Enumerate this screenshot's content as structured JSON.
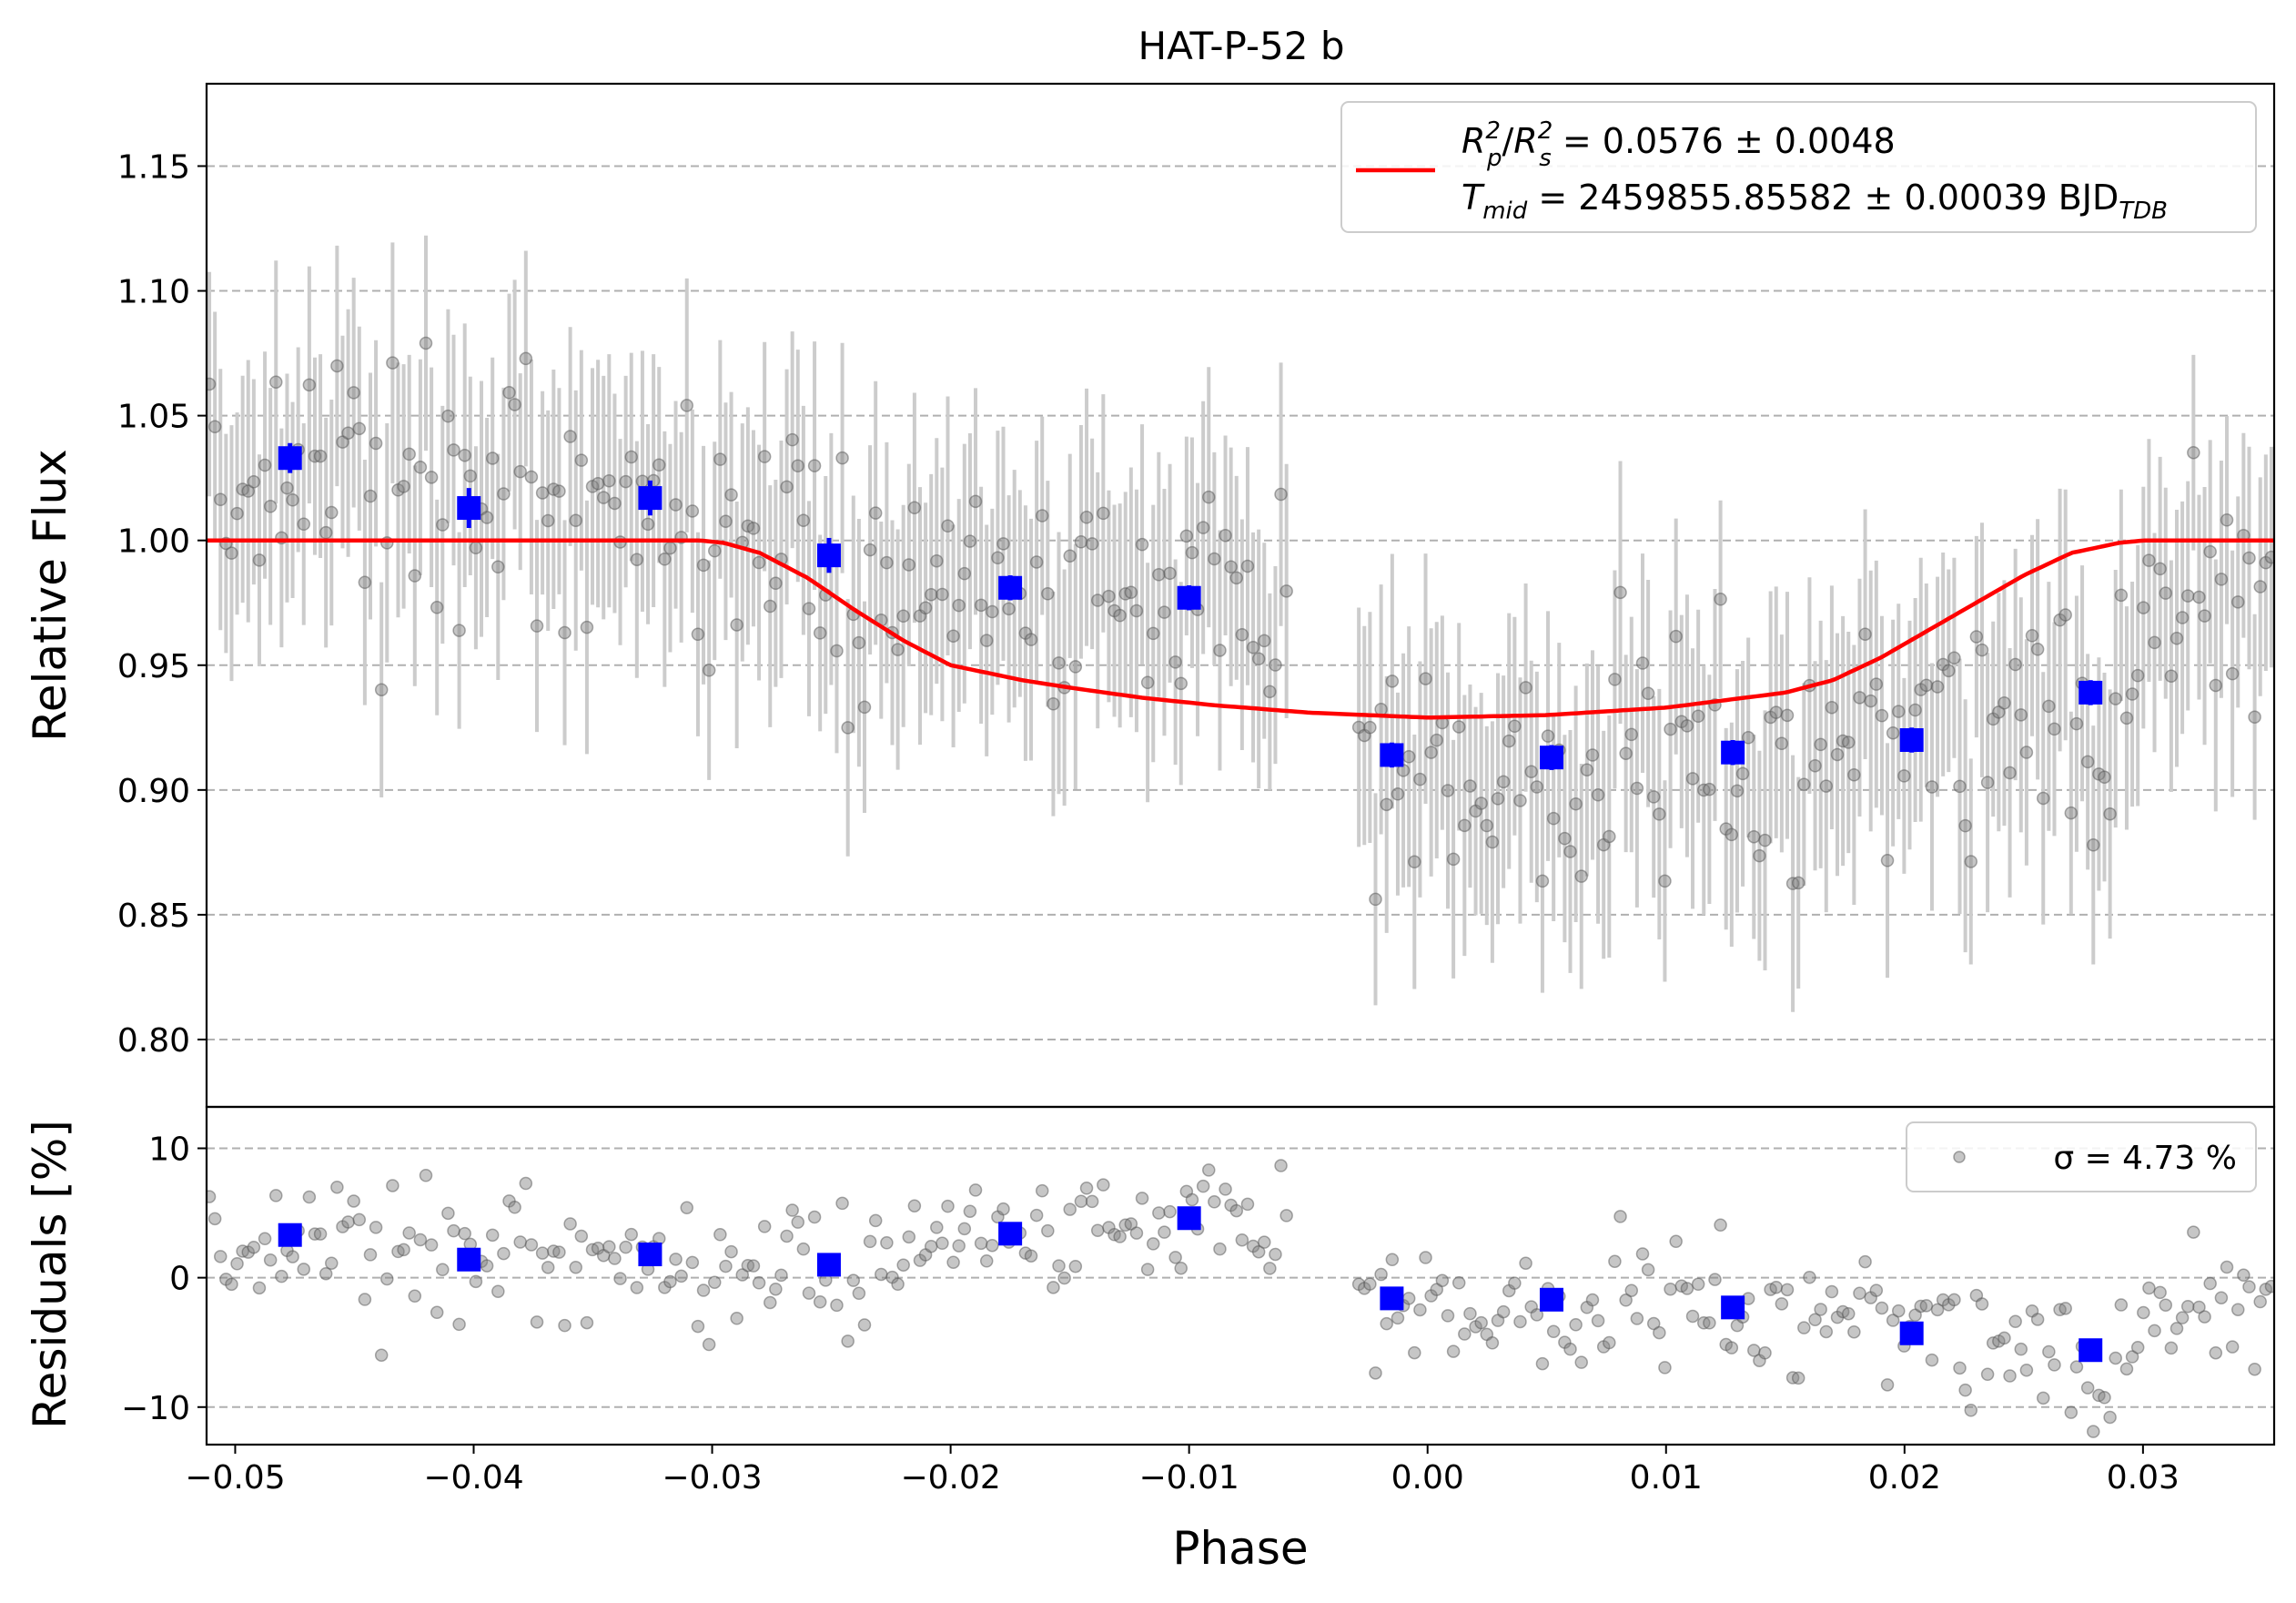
{
  "title": "HAT-P-52 b",
  "colors": {
    "model": "#ff0000",
    "binned": "#0000ff",
    "raw_points": "#808080",
    "raw_errorbars": "#cccccc",
    "grid": "#b0b0b0"
  },
  "legend_top": {
    "line1": "R_p^2/R_s^2 = 0.0576 ± 0.0048",
    "line2": "T_mid = 2459855.85582 ± 0.00039 BJD_TDB"
  },
  "legend_bottom": {
    "label": "σ = 4.73 %"
  },
  "chart_data": [
    {
      "type": "scatter",
      "panel": "light-curve",
      "title": "HAT-P-52 b",
      "xlabel": "",
      "ylabel": "Relative Flux",
      "xlim": [
        -0.0512,
        0.0355
      ],
      "ylim": [
        0.773,
        1.183
      ],
      "yticks": [
        0.8,
        0.85,
        0.9,
        0.95,
        1.0,
        1.05,
        1.1,
        1.15
      ],
      "ytick_labels": [
        "0.80",
        "0.85",
        "0.90",
        "0.95",
        "1.00",
        "1.05",
        "1.10",
        "1.15"
      ],
      "grid": "horizontal dashed",
      "legend_position": "top-right",
      "model": {
        "x": [
          -0.0512,
          -0.0305,
          -0.0295,
          -0.028,
          -0.026,
          -0.024,
          -0.022,
          -0.02,
          -0.018,
          -0.017,
          -0.015,
          -0.012,
          -0.009,
          -0.005,
          0.0,
          0.005,
          0.01,
          0.015,
          0.017,
          0.019,
          0.021,
          0.023,
          0.025,
          0.027,
          0.029,
          0.03,
          0.0355
        ],
        "y": [
          1.0,
          1.0,
          0.999,
          0.995,
          0.985,
          0.972,
          0.96,
          0.95,
          0.946,
          0.944,
          0.941,
          0.937,
          0.934,
          0.931,
          0.929,
          0.93,
          0.933,
          0.939,
          0.944,
          0.953,
          0.964,
          0.975,
          0.986,
          0.995,
          0.999,
          1.0,
          1.0
        ]
      },
      "binned": {
        "x": [
          -0.0477,
          -0.0402,
          -0.0326,
          -0.0251,
          -0.0175,
          -0.01,
          -0.0015,
          0.0052,
          0.0128,
          0.0203,
          0.0278
        ],
        "y": [
          1.033,
          1.013,
          1.017,
          0.994,
          0.981,
          0.977,
          0.914,
          0.913,
          0.915,
          0.92,
          0.939
        ],
        "yerr": [
          0.006,
          0.008,
          0.007,
          0.007,
          0.005,
          0.005,
          0.005,
          0.005,
          0.005,
          0.005,
          0.005
        ]
      },
      "raw": {
        "count": 360,
        "segments": [
          {
            "x_start": -0.0512,
            "x_end": -0.0058,
            "trend": [
              [
                -0.0512,
                1.02
              ],
              [
                -0.04,
                1.02
              ],
              [
                -0.03,
                1.0
              ],
              [
                -0.025,
                0.99
              ],
              [
                -0.0175,
                0.98
              ],
              [
                -0.01,
                0.98
              ],
              [
                -0.0058,
                0.97
              ]
            ]
          },
          {
            "x_start": -0.003,
            "x_end": 0.0355,
            "trend": [
              [
                -0.003,
                0.91
              ],
              [
                0.005,
                0.91
              ],
              [
                0.013,
                0.91
              ],
              [
                0.02,
                0.92
              ],
              [
                0.028,
                0.93
              ],
              [
                0.03,
                0.97
              ],
              [
                0.0355,
                0.99
              ]
            ]
          }
        ],
        "scatter": 0.047,
        "errorbar_typical": 0.046
      }
    },
    {
      "type": "scatter",
      "panel": "residuals",
      "xlabel": "Phase",
      "ylabel": "Residuals [%]",
      "xlim": [
        -0.0512,
        0.0355
      ],
      "ylim": [
        -12.9,
        13.2
      ],
      "yticks": [
        -10,
        0,
        10
      ],
      "ytick_labels": [
        "−10",
        "0",
        "10"
      ],
      "xticks": [
        -0.05,
        -0.04,
        -0.03,
        -0.02,
        -0.01,
        0.0,
        0.01,
        0.02,
        0.03
      ],
      "xtick_labels": [
        "−0.05",
        "−0.04",
        "−0.03",
        "−0.02",
        "−0.01",
        "0.00",
        "0.01",
        "0.02",
        "0.03"
      ],
      "grid": "horizontal dashed",
      "legend_position": "top-right",
      "binned": {
        "x": [
          -0.0477,
          -0.0402,
          -0.0326,
          -0.0251,
          -0.0175,
          -0.01,
          -0.0015,
          0.0052,
          0.0128,
          0.0203,
          0.0278
        ],
        "y": [
          3.3,
          1.4,
          1.8,
          1.0,
          3.4,
          4.6,
          -1.6,
          -1.7,
          -2.3,
          -4.3,
          -5.6
        ]
      },
      "raw": {
        "sigma_percent": 4.73
      }
    }
  ]
}
